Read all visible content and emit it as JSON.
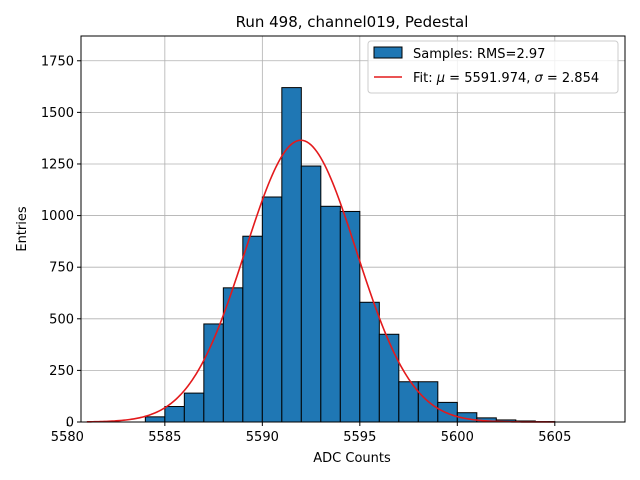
{
  "chart_data": {
    "type": "bar",
    "title": "Run 498, channel019, Pedestal",
    "xlabel": "ADC Counts",
    "ylabel": "Entries",
    "xlim": [
      5580.7,
      5608.6
    ],
    "ylim": [
      0,
      1870
    ],
    "xticks": [
      5580,
      5585,
      5590,
      5595,
      5600,
      5605
    ],
    "yticks": [
      0,
      250,
      500,
      750,
      1000,
      1250,
      1500,
      1750
    ],
    "grid": true,
    "legend_position": "top-right",
    "bar_color": "#1f77b4",
    "fit_color": "#e31a1c",
    "bins": [
      {
        "left": 5584,
        "right": 5585,
        "count": 25
      },
      {
        "left": 5585,
        "right": 5586,
        "count": 75
      },
      {
        "left": 5586,
        "right": 5587,
        "count": 140
      },
      {
        "left": 5587,
        "right": 5588,
        "count": 475
      },
      {
        "left": 5588,
        "right": 5589,
        "count": 650
      },
      {
        "left": 5589,
        "right": 5590,
        "count": 900
      },
      {
        "left": 5590,
        "right": 5591,
        "count": 1090
      },
      {
        "left": 5591,
        "right": 5592,
        "count": 1620
      },
      {
        "left": 5592,
        "right": 5593,
        "count": 1240
      },
      {
        "left": 5593,
        "right": 5594,
        "count": 1045
      },
      {
        "left": 5594,
        "right": 5595,
        "count": 1020
      },
      {
        "left": 5595,
        "right": 5596,
        "count": 580
      },
      {
        "left": 5596,
        "right": 5597,
        "count": 425
      },
      {
        "left": 5597,
        "right": 5598,
        "count": 195
      },
      {
        "left": 5598,
        "right": 5599,
        "count": 195
      },
      {
        "left": 5599,
        "right": 5600,
        "count": 95
      },
      {
        "left": 5600,
        "right": 5601,
        "count": 45
      },
      {
        "left": 5601,
        "right": 5602,
        "count": 20
      },
      {
        "left": 5602,
        "right": 5603,
        "count": 10
      },
      {
        "left": 5603,
        "right": 5604,
        "count": 5
      },
      {
        "left": 5604,
        "right": 5605,
        "count": 2
      }
    ],
    "fit": {
      "mu": 5591.974,
      "sigma": 2.854,
      "amplitude": 1365,
      "x_range": [
        5581,
        5605
      ]
    },
    "legend": {
      "samples_prefix": "Samples: RMS=",
      "samples_rms": "2.97",
      "fit_prefix": "Fit: ",
      "mu_symbol": "μ",
      "mu_value": " = 5591.974, ",
      "sigma_symbol": "σ",
      "sigma_value": " = 2.854"
    }
  }
}
